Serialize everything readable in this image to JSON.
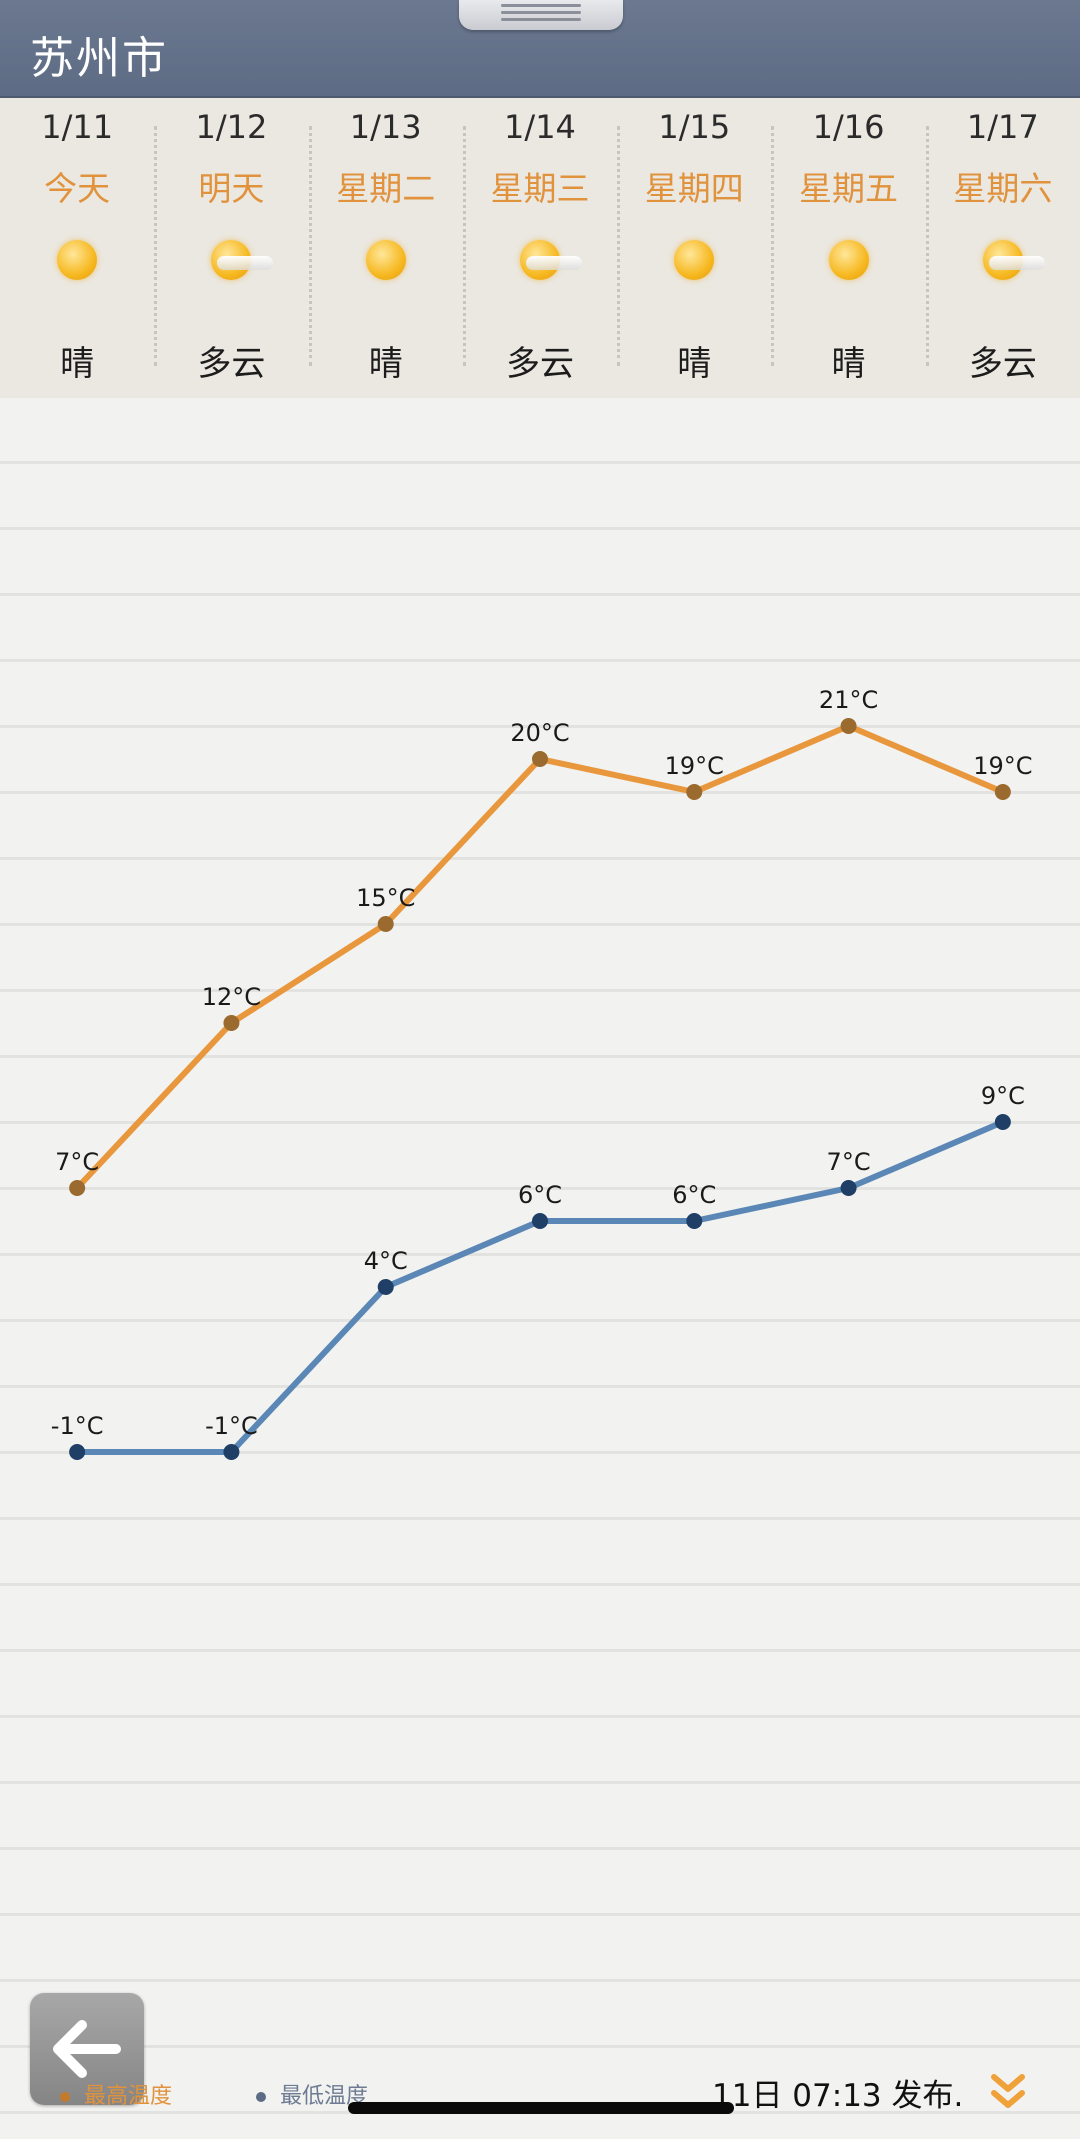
{
  "header": {
    "title": "苏州市"
  },
  "forecast": [
    {
      "date": "1/11",
      "name": "今天",
      "icon": "sunny-icon",
      "condition": "晴"
    },
    {
      "date": "1/12",
      "name": "明天",
      "icon": "cloudy-icon",
      "condition": "多云"
    },
    {
      "date": "1/13",
      "name": "星期二",
      "icon": "sunny-icon",
      "condition": "晴"
    },
    {
      "date": "1/14",
      "name": "星期三",
      "icon": "cloudy-icon",
      "condition": "多云"
    },
    {
      "date": "1/15",
      "name": "星期四",
      "icon": "sunny-icon",
      "condition": "晴"
    },
    {
      "date": "1/16",
      "name": "星期五",
      "icon": "sunny-icon",
      "condition": "晴"
    },
    {
      "date": "1/17",
      "name": "星期六",
      "icon": "cloudy-icon",
      "condition": "多云"
    }
  ],
  "chart_data": {
    "type": "line",
    "x": [
      "1/11",
      "1/12",
      "1/13",
      "1/14",
      "1/15",
      "1/16",
      "1/17"
    ],
    "unit": "°C",
    "series": [
      {
        "name": "最高温度",
        "values": [
          7,
          12,
          15,
          20,
          19,
          21,
          19
        ],
        "color": "#e8973d"
      },
      {
        "name": "最低温度",
        "values": [
          -1,
          -1,
          4,
          6,
          6,
          7,
          9
        ],
        "color": "#5a87b5"
      }
    ]
  },
  "legend": {
    "high_label": "最高温度",
    "low_label": "最低温度",
    "high_color": "#e0923c",
    "low_color": "#6d7b93"
  },
  "footer": {
    "publish_text": "11日 07:13 发布."
  }
}
